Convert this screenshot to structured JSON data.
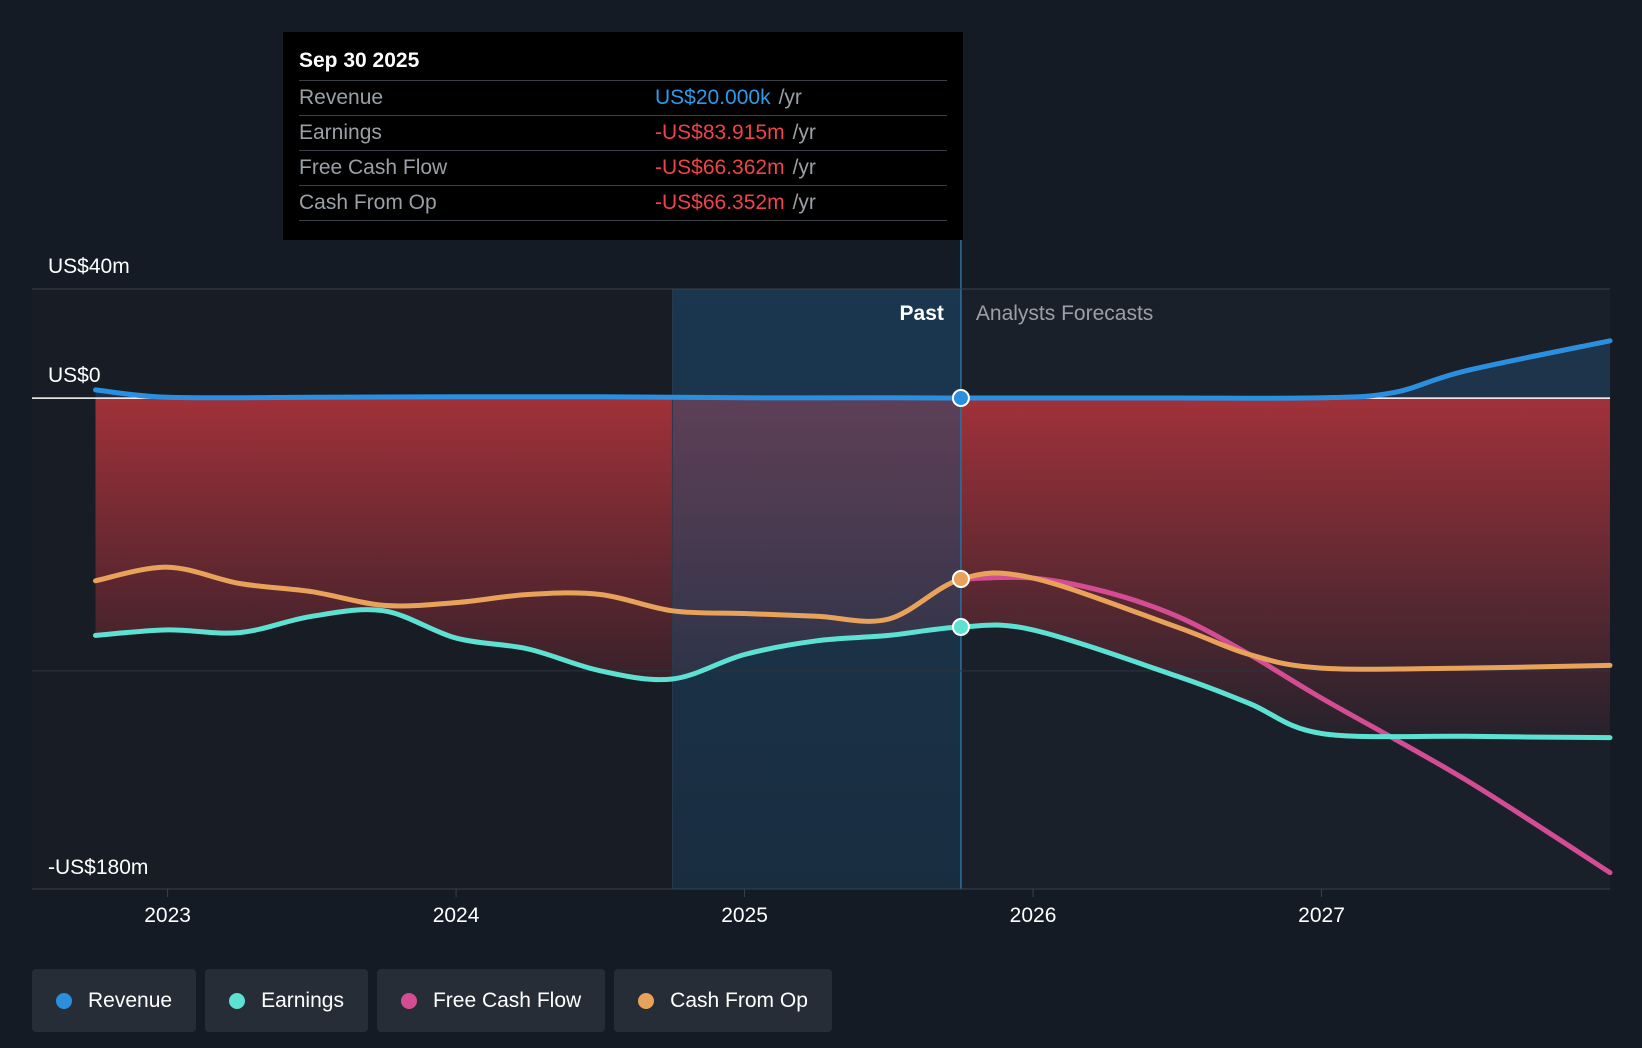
{
  "chart_data": {
    "type": "line",
    "title": "",
    "xlabel": "",
    "ylabel": "",
    "ylim": [
      -180,
      40
    ],
    "y_tick_labels": [
      "US$40m",
      "US$0",
      "-US$180m"
    ],
    "y_ticks": [
      40,
      0,
      -180
    ],
    "x_tick_labels": [
      "2023",
      "2024",
      "2025",
      "2026",
      "2027"
    ],
    "x_ticks": [
      2023.0,
      2024.0,
      2025.0,
      2026.0,
      2027.0
    ],
    "xlim": [
      2022.53,
      2028.0
    ],
    "past_label": "Past",
    "forecast_label": "Analysts Forecasts",
    "past_end": 2025.75,
    "shade_start": 2024.75,
    "legend_position": "bottom-left",
    "series": [
      {
        "name": "Revenue",
        "color": "#2b8fe0",
        "points": [
          [
            2022.75,
            3
          ],
          [
            2023.0,
            0.3
          ],
          [
            2023.5,
            0.3
          ],
          [
            2024.0,
            0.5
          ],
          [
            2024.5,
            0.5
          ],
          [
            2025.0,
            0.1
          ],
          [
            2025.5,
            0.1
          ],
          [
            2025.75,
            0.02
          ],
          [
            2026.0,
            0.02
          ],
          [
            2026.5,
            0.02
          ],
          [
            2027.0,
            0.1
          ],
          [
            2027.25,
            2
          ],
          [
            2027.5,
            10
          ],
          [
            2028.0,
            21
          ]
        ]
      },
      {
        "name": "Cash From Op",
        "color": "#e8a25a",
        "points": [
          [
            2022.75,
            -67
          ],
          [
            2023.0,
            -62
          ],
          [
            2023.25,
            -68
          ],
          [
            2023.5,
            -71
          ],
          [
            2023.75,
            -76
          ],
          [
            2024.0,
            -75
          ],
          [
            2024.25,
            -72
          ],
          [
            2024.5,
            -72
          ],
          [
            2024.75,
            -78
          ],
          [
            2025.0,
            -79
          ],
          [
            2025.25,
            -80
          ],
          [
            2025.5,
            -81
          ],
          [
            2025.75,
            -66.352
          ],
          [
            2026.0,
            -66
          ],
          [
            2026.5,
            -84
          ],
          [
            2026.75,
            -94
          ],
          [
            2027.0,
            -99
          ],
          [
            2027.5,
            -99
          ],
          [
            2028.0,
            -98
          ]
        ]
      },
      {
        "name": "Earnings",
        "color": "#5ce1d2",
        "points": [
          [
            2022.75,
            -87
          ],
          [
            2023.0,
            -85
          ],
          [
            2023.25,
            -86
          ],
          [
            2023.5,
            -80
          ],
          [
            2023.75,
            -78
          ],
          [
            2024.0,
            -88
          ],
          [
            2024.25,
            -92
          ],
          [
            2024.5,
            -100
          ],
          [
            2024.75,
            -103
          ],
          [
            2025.0,
            -94
          ],
          [
            2025.25,
            -89
          ],
          [
            2025.5,
            -87
          ],
          [
            2025.75,
            -83.915
          ],
          [
            2026.0,
            -85
          ],
          [
            2026.5,
            -102
          ],
          [
            2026.75,
            -112
          ],
          [
            2027.0,
            -123
          ],
          [
            2027.5,
            -124
          ],
          [
            2028.0,
            -124.5
          ]
        ]
      },
      {
        "name": "Free Cash Flow",
        "color": "#d44d94",
        "points": [
          [
            2025.75,
            -66.362
          ],
          [
            2026.0,
            -66
          ],
          [
            2026.25,
            -71
          ],
          [
            2026.5,
            -80
          ],
          [
            2026.75,
            -94
          ],
          [
            2027.0,
            -110
          ],
          [
            2027.5,
            -140
          ],
          [
            2028.0,
            -174
          ]
        ]
      }
    ]
  },
  "tooltip": {
    "date": "Sep 30 2025",
    "rows": [
      {
        "label": "Revenue",
        "value": "US$20.000k",
        "unit": "/yr"
      },
      {
        "label": "Earnings",
        "value": "-US$83.915m",
        "unit": "/yr"
      },
      {
        "label": "Free Cash Flow",
        "value": "-US$66.362m",
        "unit": "/yr"
      },
      {
        "label": "Cash From Op",
        "value": "-US$66.352m",
        "unit": "/yr"
      }
    ]
  },
  "legend": [
    {
      "label": "Revenue",
      "color": "#2b8fe0"
    },
    {
      "label": "Earnings",
      "color": "#5ce1d2"
    },
    {
      "label": "Free Cash Flow",
      "color": "#d44d94"
    },
    {
      "label": "Cash From Op",
      "color": "#e8a25a"
    }
  ]
}
